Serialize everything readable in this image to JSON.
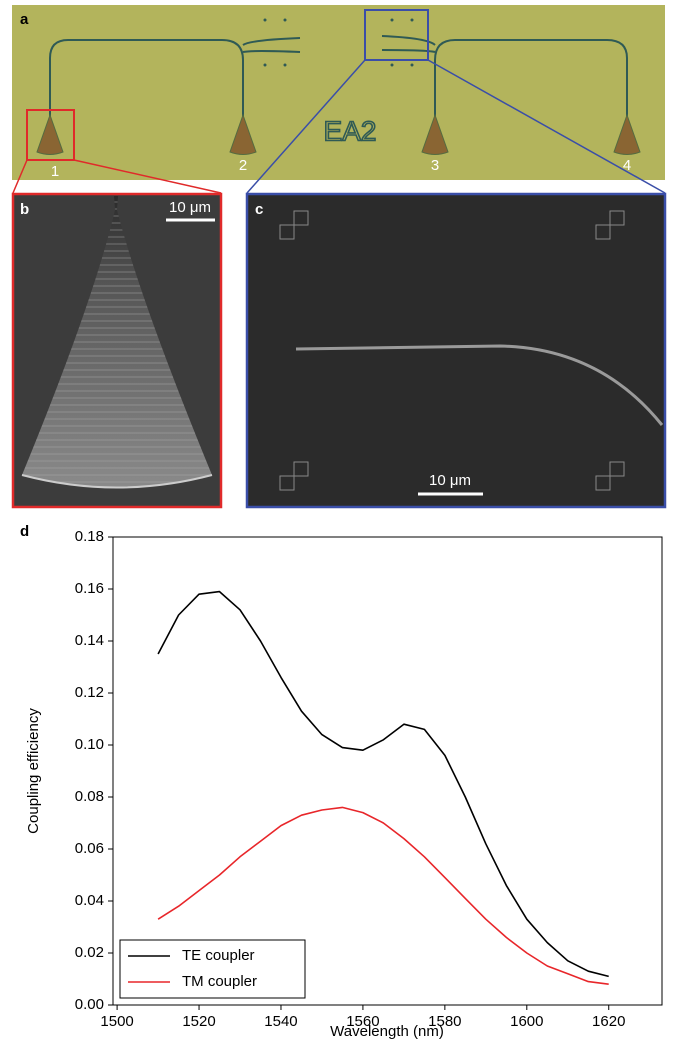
{
  "panels": {
    "a": {
      "label": "a",
      "ports": [
        "1",
        "2",
        "3",
        "4"
      ],
      "chip_label": "EA2"
    },
    "b": {
      "label": "b",
      "scale_bar": "10 μm"
    },
    "c": {
      "label": "c",
      "scale_bar": "10 μm"
    }
  },
  "chart_data": {
    "type": "line",
    "panel_label": "d",
    "x_label": "Wavelength (nm)",
    "y_label": "Coupling efficiency",
    "x": [
      1510,
      1515,
      1520,
      1525,
      1530,
      1535,
      1540,
      1545,
      1550,
      1555,
      1560,
      1565,
      1570,
      1575,
      1580,
      1585,
      1590,
      1595,
      1600,
      1605,
      1610,
      1615,
      1620
    ],
    "series": [
      {
        "name": "TE coupler",
        "color": "#000000",
        "values": [
          0.135,
          0.15,
          0.158,
          0.159,
          0.152,
          0.14,
          0.126,
          0.113,
          0.104,
          0.099,
          0.098,
          0.102,
          0.108,
          0.106,
          0.096,
          0.08,
          0.062,
          0.046,
          0.033,
          0.024,
          0.017,
          0.013,
          0.011
        ]
      },
      {
        "name": "TM coupler",
        "color": "#e8262a",
        "values": [
          0.033,
          0.038,
          0.044,
          0.05,
          0.057,
          0.063,
          0.069,
          0.073,
          0.075,
          0.076,
          0.074,
          0.07,
          0.064,
          0.057,
          0.049,
          0.041,
          0.033,
          0.026,
          0.02,
          0.015,
          0.012,
          0.009,
          0.008
        ]
      }
    ],
    "xlim": [
      1499,
      1633
    ],
    "xticks": [
      1500,
      1520,
      1540,
      1560,
      1580,
      1600,
      1620
    ],
    "ylim": [
      0,
      0.18
    ],
    "yticks": [
      {
        "value": 0,
        "label": "0.00"
      },
      {
        "value": 0.02,
        "label": "0.02"
      },
      {
        "value": 0.04,
        "label": "0.04"
      },
      {
        "value": 0.06,
        "label": "0.06"
      },
      {
        "value": 0.08,
        "label": "0.08"
      },
      {
        "value": 0.1,
        "label": "0.10"
      },
      {
        "value": 0.12,
        "label": "0.12"
      },
      {
        "value": 0.14,
        "label": "0.14"
      },
      {
        "value": 0.16,
        "label": "0.16"
      },
      {
        "value": 0.18,
        "label": "0.18"
      }
    ],
    "legend": "lower left"
  }
}
